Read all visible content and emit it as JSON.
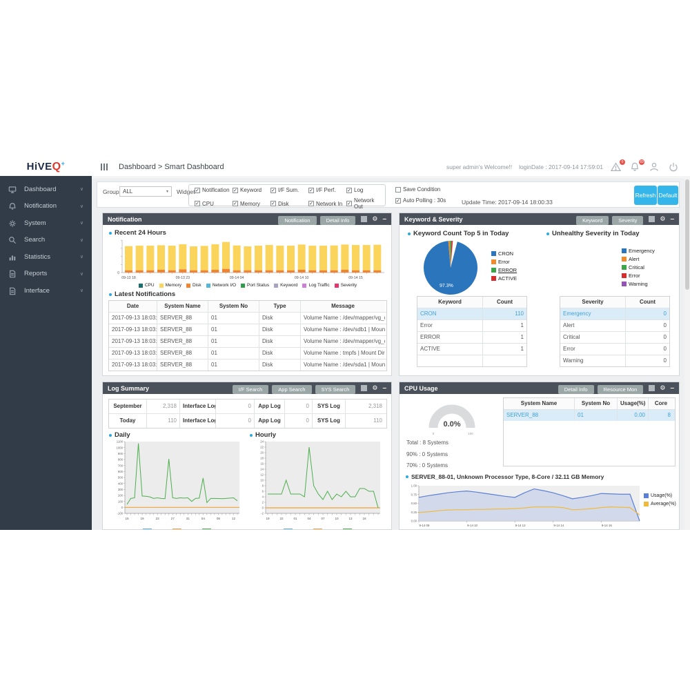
{
  "brand": {
    "name": "HiVE",
    "q": "Q",
    "plus": "+"
  },
  "topbar": {
    "breadcrumb": "Dashboard > Smart Dashboard",
    "welcome": "super admin's Welcome!!",
    "login_date": "loginDate : 2017-09-14 17:59:01",
    "alert_badge": "0",
    "bell_badge": "69"
  },
  "sidebar": {
    "items": [
      {
        "label": "Dashboard",
        "icon": "desktop"
      },
      {
        "label": "Notification",
        "icon": "bell"
      },
      {
        "label": "System",
        "icon": "gear"
      },
      {
        "label": "Search",
        "icon": "search"
      },
      {
        "label": "Statistics",
        "icon": "chart"
      },
      {
        "label": "Reports",
        "icon": "file"
      },
      {
        "label": "Interface",
        "icon": "file"
      }
    ]
  },
  "filter": {
    "group_label": "Group",
    "group_value": "ALL",
    "widget_label": "Widget",
    "widgets_row1": [
      {
        "label": "Notification",
        "checked": true
      },
      {
        "label": "Keyword",
        "checked": true
      },
      {
        "label": "I/F Sum.",
        "checked": true
      },
      {
        "label": "I/F Perf.",
        "checked": true
      },
      {
        "label": "Log",
        "checked": true
      }
    ],
    "widgets_row2": [
      {
        "label": "CPU",
        "checked": true
      },
      {
        "label": "Memory",
        "checked": true
      },
      {
        "label": "Disk",
        "checked": true
      },
      {
        "label": "Network In",
        "checked": true
      },
      {
        "label": "Network Out",
        "checked": true
      }
    ],
    "save_condition": {
      "label": "Save Condition",
      "checked": false
    },
    "auto_polling": {
      "label": "Auto Polling : 30s",
      "checked": true
    },
    "update_time": "Update Time: 2017-09-14 18:00:33",
    "refresh_label": "Refresh",
    "default_label": "Default"
  },
  "panels": {
    "notification": {
      "title": "Notification",
      "header_buttons": [
        "Notification",
        "Detail Info"
      ],
      "recent_title": "Recent 24 Hours",
      "latest_title": "Latest Notifications",
      "legend": [
        {
          "label": "CPU",
          "color": "#176f6f"
        },
        {
          "label": "Memory",
          "color": "#fbd45c"
        },
        {
          "label": "Disk",
          "color": "#ef8432"
        },
        {
          "label": "Network I/O",
          "color": "#52b7d8"
        },
        {
          "label": "Port Status",
          "color": "#2f9e48"
        },
        {
          "label": "Keyword",
          "color": "#a9a2c5"
        },
        {
          "label": "Log Traffic",
          "color": "#cd7fd6"
        },
        {
          "label": "Severity",
          "color": "#e8336d"
        }
      ],
      "table": {
        "headers": [
          "Date",
          "System Name",
          "System No",
          "Type",
          "Message"
        ],
        "rows": [
          [
            "2017-09-13 18:03:3",
            "SERVER_88",
            "01",
            "Disk",
            "Volume Name : /dev/mapper/vg_comers"
          ],
          [
            "2017-09-13 18:03:3",
            "SERVER_88",
            "01",
            "Disk",
            "Volume Name : /dev/sdb1  | Mount Dire"
          ],
          [
            "2017-09-13 18:03:3",
            "SERVER_88",
            "01",
            "Disk",
            "Volume Name : /dev/mapper/vg_comers"
          ],
          [
            "2017-09-13 18:03:3",
            "SERVER_88",
            "01",
            "Disk",
            "Volume Name : tmpfs  | Mount Directory"
          ],
          [
            "2017-09-13 18:03:3",
            "SERVER_88",
            "01",
            "Disk",
            "Volume Name : /dev/sda1  | Mount Dire"
          ]
        ]
      }
    },
    "keyword_severity": {
      "title": "Keyword & Severity",
      "header_buttons": [
        "Keyword",
        "Severity"
      ],
      "left_title": "Keyword Count Top 5 in Today",
      "right_title": "Unhealthy Severity in Today",
      "keyword_legend": [
        {
          "label": "CRON",
          "color": "#2a75bb"
        },
        {
          "label": "Error",
          "color": "#f08c2e"
        },
        {
          "label": "ERROR",
          "color": "#3aa549",
          "underline": true
        },
        {
          "label": "ACTIVE",
          "color": "#d62e2e"
        }
      ],
      "severity_legend": [
        {
          "label": "Emergency",
          "color": "#2a75bb"
        },
        {
          "label": "Alert",
          "color": "#f08c2e"
        },
        {
          "label": "Critical",
          "color": "#3aa549"
        },
        {
          "label": "Error",
          "color": "#d62e2e"
        },
        {
          "label": "Warning",
          "color": "#9453b5"
        }
      ],
      "keyword_table": {
        "headers": [
          "Keyword",
          "Count"
        ],
        "rows": [
          [
            "CRON",
            "110"
          ],
          [
            "Error",
            "1"
          ],
          [
            "ERROR",
            "1"
          ],
          [
            "ACTIVE",
            "1"
          ],
          [
            "",
            ""
          ]
        ]
      },
      "severity_table": {
        "headers": [
          "Severity",
          "Count"
        ],
        "rows": [
          [
            "Emergency",
            "0"
          ],
          [
            "Alert",
            "0"
          ],
          [
            "Critical",
            "0"
          ],
          [
            "Error",
            "0"
          ],
          [
            "Warning",
            "0"
          ]
        ]
      }
    },
    "log_summary": {
      "title": "Log Summary",
      "header_buttons": [
        "I/F Search",
        "App Search",
        "SYS Search"
      ],
      "summary_rows": [
        [
          "September",
          "2,318",
          "Interface Log",
          "0",
          "App Log",
          "0",
          "SYS Log",
          "2,318"
        ],
        [
          "Today",
          "110",
          "Interface Log",
          "0",
          "App Log",
          "0",
          "SYS Log",
          "110"
        ]
      ],
      "daily_title": "Daily",
      "hourly_title": "Hourly"
    },
    "cpu_usage": {
      "title": "CPU Usage",
      "header_buttons": [
        "Detail Info",
        "Resource Mon"
      ],
      "gauge_display": "0.0%",
      "gauge_min": "0",
      "gauge_max": "100",
      "stats": [
        "Total : 8 Systems",
        "90% : 0 Systems",
        "70% : 0 Systems"
      ],
      "table": {
        "headers": [
          "System Name",
          "System No",
          "Usage(%)",
          "Core"
        ],
        "rows": [
          [
            "SERVER_88",
            "01",
            "0.00",
            "8"
          ]
        ]
      },
      "chart_title": "SERVER_88-01, Unknown Processor Type, 8-Core / 32.11 GB Memory",
      "legend": [
        {
          "label": "Usage(%)",
          "color": "#5b7fd6"
        },
        {
          "label": "Average(%)",
          "color": "#f2b93f"
        }
      ]
    }
  },
  "colors": {
    "accent_blue": "#2aa9e0",
    "refresh_blue": "#35b6ea",
    "panel_header": "#4a515a",
    "header_button_gray": "#9aa7a6",
    "highlight_row": "#d9ecf7",
    "highlight_text": "#47a0d8",
    "line_green": "#4cae4c",
    "line_orange": "#f0a13a"
  },
  "chart_data": {
    "notification_bars": {
      "type": "bar",
      "stacked": true,
      "x_tick_labels": [
        "09-13 18",
        "09-13 23",
        "09-14 04",
        "09-14 10",
        "09-14 15"
      ],
      "x_tick_idx": [
        0,
        5,
        10,
        16,
        21
      ],
      "ylim": [
        0,
        140
      ],
      "series": [
        {
          "name": "Disk",
          "color": "#ef8432",
          "values": [
            10,
            10,
            10,
            12,
            10,
            14,
            10,
            10,
            12,
            16,
            10,
            10,
            10,
            10,
            10,
            10,
            12,
            10,
            10,
            10,
            12,
            10,
            10,
            10
          ]
        },
        {
          "name": "Memory",
          "color": "#fbd45c",
          "values": [
            104,
            106,
            106,
            106,
            106,
            108,
            103,
            105,
            110,
            116,
            107,
            103,
            106,
            109,
            106,
            106,
            109,
            106,
            106,
            107,
            109,
            109,
            109,
            110
          ]
        }
      ]
    },
    "keyword_pie": {
      "type": "pie",
      "labels": [
        "CRON",
        "Error",
        "ERROR",
        "ACTIVE"
      ],
      "values": [
        97.3,
        1.0,
        0.9,
        0.8
      ],
      "colors": [
        "#2a75bb",
        "#f08c2e",
        "#3aa549",
        "#d62e2e"
      ],
      "center_label": "97.3%",
      "title": "Keyword Count Top 5 in Today"
    },
    "daily": {
      "type": "line",
      "title": "Daily",
      "x_tick_labels": [
        "15",
        "19",
        "23",
        "27",
        "31",
        "04",
        "08",
        "12"
      ],
      "x_tick_idx": [
        0,
        4,
        8,
        12,
        16,
        20,
        24,
        28
      ],
      "ylim": [
        -100,
        1100
      ],
      "ytick_step": 100,
      "baseline": {
        "value": 0,
        "color": "#f0a13a"
      },
      "series": [
        {
          "name": "Daily Log Count",
          "color": "#4cae4c",
          "values": [
            50,
            150,
            160,
            1070,
            190,
            185,
            175,
            150,
            160,
            150,
            145,
            810,
            160,
            150,
            160,
            155,
            160,
            100,
            150,
            155,
            490,
            80,
            150,
            150,
            148,
            145,
            150,
            155,
            160,
            110
          ]
        }
      ]
    },
    "hourly": {
      "type": "line",
      "title": "Hourly",
      "x_tick_labels": [
        "19",
        "22",
        "01",
        "04",
        "07",
        "10",
        "13",
        "16"
      ],
      "x_tick_idx": [
        0,
        3,
        6,
        9,
        12,
        15,
        18,
        21
      ],
      "ylim": [
        -2,
        24
      ],
      "ytick_step": 2,
      "baseline": {
        "value": 0,
        "color": "#f0a13a"
      },
      "series": [
        {
          "name": "Hourly Log Count",
          "color": "#4cae4c",
          "values": [
            5,
            5,
            5,
            5,
            10,
            5,
            5,
            5,
            4,
            22,
            8,
            5,
            3,
            6,
            3,
            5,
            4,
            6,
            4,
            4,
            7,
            7,
            6,
            6,
            0
          ]
        }
      ]
    },
    "cpu_area": {
      "type": "area",
      "title": "SERVER_88-01, Unknown Processor Type, 8-Core / 32.11 GB Memory",
      "x_tick_labels": [
        "9-14 08",
        "9-14 10",
        "9-14 12",
        "9-14 14",
        "9-14 16"
      ],
      "x_tick_idx": [
        0,
        5,
        10,
        14,
        19
      ],
      "ylim": [
        0,
        1
      ],
      "yticks": [
        "0.00",
        "0.25",
        "0.50",
        "0.75",
        "1.00"
      ],
      "series": [
        {
          "name": "Usage(%)",
          "color": "#5b7fd6",
          "fill": "#cbd5e9",
          "values": [
            0.67,
            0.72,
            0.76,
            0.8,
            0.83,
            0.85,
            0.82,
            0.78,
            0.74,
            0.7,
            0.67,
            0.8,
            0.91,
            0.86,
            0.8,
            0.72,
            0.63,
            0.67,
            0.72,
            0.78,
            0.77,
            0.76,
            0.76,
            0.0
          ]
        },
        {
          "name": "Average(%)",
          "color": "#f2b93f",
          "values": [
            0.24,
            0.26,
            0.29,
            0.31,
            0.32,
            0.32,
            0.33,
            0.33,
            0.34,
            0.34,
            0.35,
            0.37,
            0.4,
            0.4,
            0.4,
            0.38,
            0.32,
            0.33,
            0.35,
            0.38,
            0.4,
            0.39,
            0.38,
            0.17
          ]
        }
      ]
    },
    "cpu_gauge": {
      "type": "gauge",
      "value": 0.0,
      "display": "0.0%",
      "min": 0,
      "max": 100
    }
  }
}
